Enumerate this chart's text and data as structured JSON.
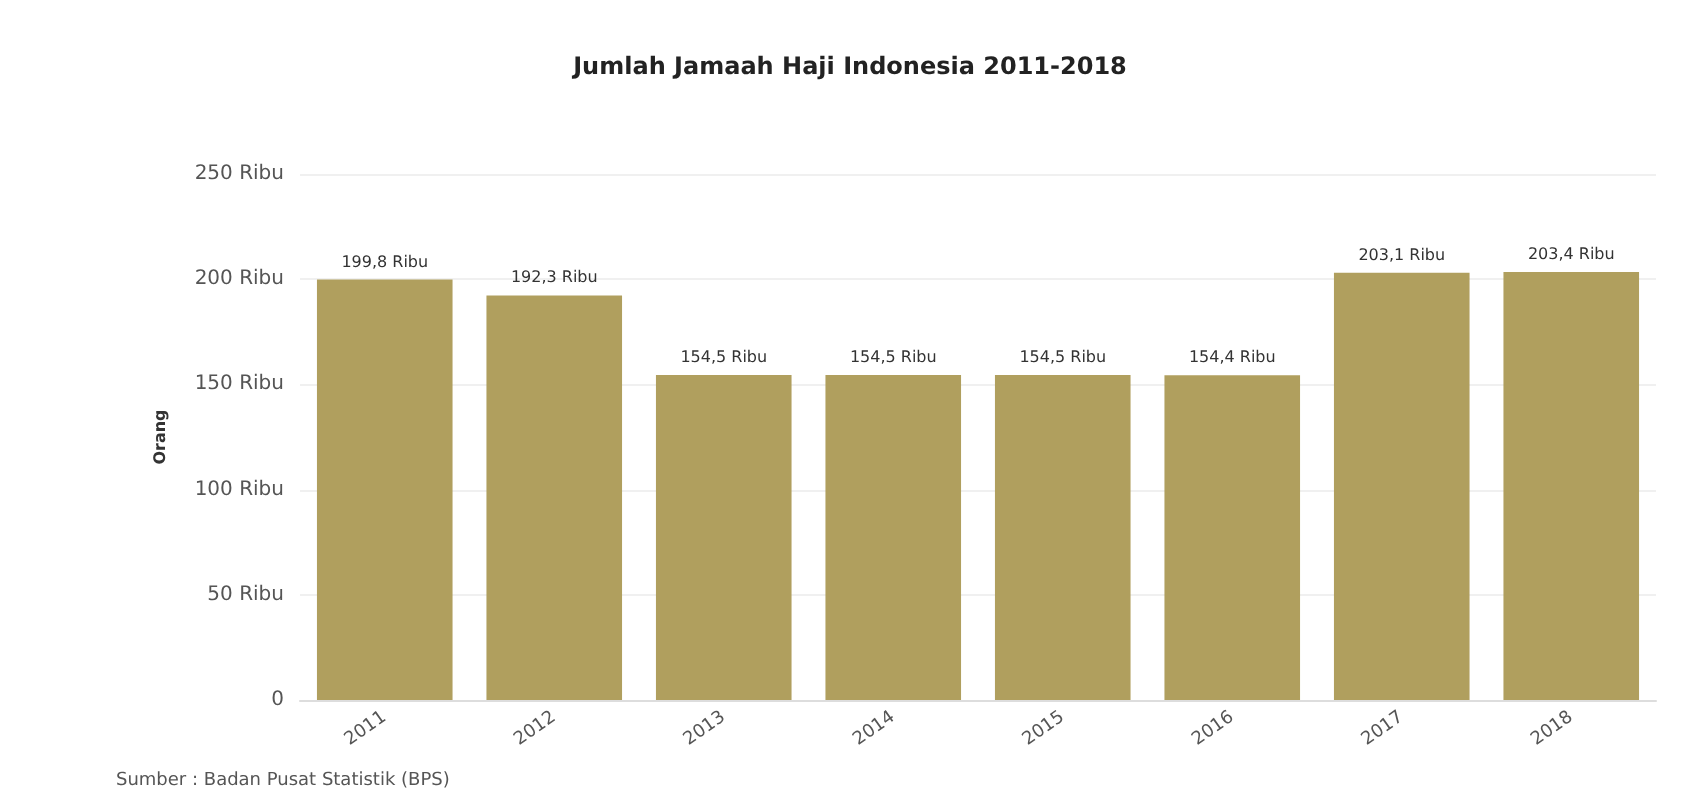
{
  "chart_data": {
    "type": "bar",
    "title": "Jumlah Jamaah Haji Indonesia 2011-2018",
    "ylabel": "Orang",
    "categories": [
      "2011",
      "2012",
      "2013",
      "2014",
      "2015",
      "2016",
      "2017",
      "2018"
    ],
    "values": [
      199.8,
      192.3,
      154.5,
      154.5,
      154.5,
      154.4,
      203.1,
      203.4
    ],
    "value_labels": [
      "199,8 Ribu",
      "192,3 Ribu",
      "154,5 Ribu",
      "154,5 Ribu",
      "154,5 Ribu",
      "154,4 Ribu",
      "203,1 Ribu",
      "203,4 Ribu"
    ],
    "color": "#b09f5e",
    "ylim": [
      0,
      250
    ],
    "yticks": [
      0,
      {
        "value": 50,
        "label": "50 Ribu"
      },
      {
        "value": 100,
        "label": "100 Ribu"
      },
      {
        "value": 150,
        "label": "150 Ribu"
      },
      {
        "value": 200,
        "label": "200 Ribu"
      },
      {
        "value": 250,
        "label": "250 Ribu"
      }
    ],
    "grid": "y",
    "annotations": [
      "Sumber : Badan Pusat Statistik (BPS)"
    ]
  }
}
